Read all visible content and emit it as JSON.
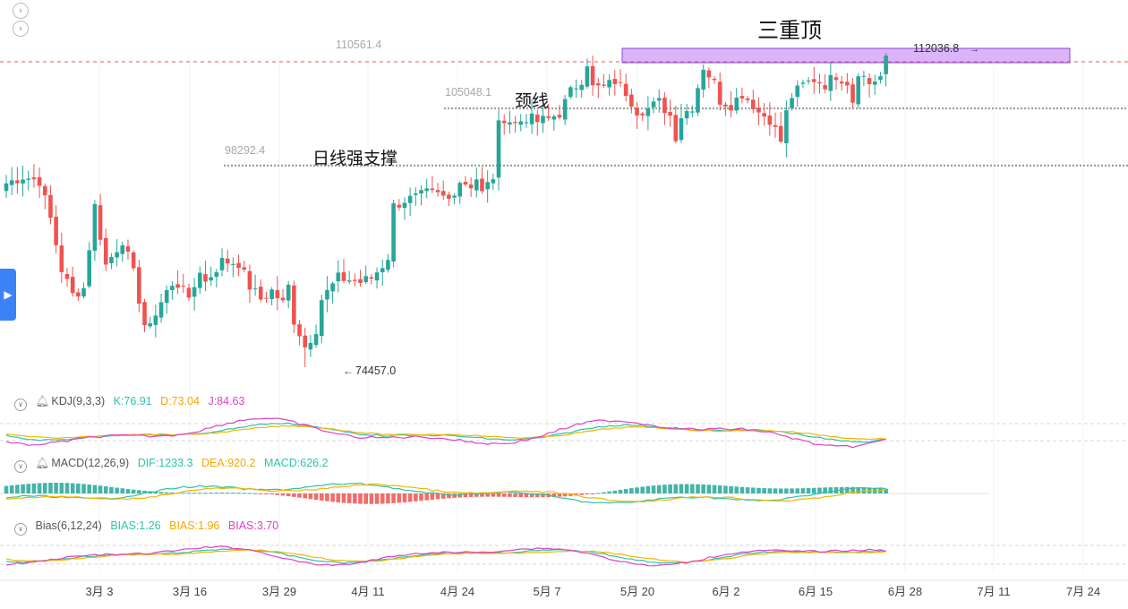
{
  "ui": {
    "top_icons": [
      "chevron-right-icon",
      "chevron-right-icon"
    ],
    "side_tab_icon": "play-right-icon",
    "top_icon_glyph": "›",
    "side_tab_glyph": "▶"
  },
  "annotations": {
    "pattern_title": "三重顶",
    "neckline_label": "颈线",
    "support_label": "日线强支撑",
    "level_high": "110561.4",
    "level_neck": "105048.1",
    "level_support": "98292.4",
    "price_low": "74457.0",
    "price_last": "112036.8"
  },
  "indicators": {
    "kdj": {
      "name": "KDJ(9,3,3)",
      "k": "K:76.91",
      "d": "D:73.04",
      "j": "J:84.63"
    },
    "macd": {
      "name": "MACD(12,26,9)",
      "dif": "DIF:1233.3",
      "dea": "DEA:920.2",
      "macd": "MACD:626.2"
    },
    "bias": {
      "name": "Bias(6,12,24)",
      "b1": "BIAS:1.26",
      "b2": "BIAS:1.96",
      "b3": "BIAS:3.70"
    }
  },
  "colors": {
    "up": "#26a69a",
    "down": "#ef5350",
    "k": "#2bc4a9",
    "d": "#f5b400",
    "j": "#e040c8",
    "zone": "#cf9cf5",
    "zone_border": "#8a44d6"
  },
  "chart_data": {
    "type": "candlestick",
    "x_tick_labels": [
      "3月 3",
      "3月 16",
      "3月 29",
      "4月 11",
      "4月 24",
      "5月 7",
      "5月 20",
      "6月 2",
      "6月 15",
      "6月 28",
      "7月 11",
      "7月 24"
    ],
    "levels": {
      "resistance": 110561.4,
      "neckline": 105048.1,
      "support": 98292.4
    },
    "extremes": {
      "low": 74457.0,
      "last_high": 112036.8
    },
    "closes_control": [
      [
        0,
        96200
      ],
      [
        3,
        97000
      ],
      [
        6,
        96500
      ],
      [
        8,
        92000
      ],
      [
        10,
        86000
      ],
      [
        12,
        83000
      ],
      [
        14,
        83800
      ],
      [
        16,
        93500
      ],
      [
        18,
        86500
      ],
      [
        21,
        89500
      ],
      [
        23,
        85500
      ],
      [
        25,
        79500
      ],
      [
        26,
        79000
      ],
      [
        27,
        81000
      ],
      [
        29,
        83500
      ],
      [
        32,
        84500
      ],
      [
        33,
        82000
      ],
      [
        35,
        86000
      ],
      [
        36,
        84500
      ],
      [
        39,
        87000
      ],
      [
        42,
        86800
      ],
      [
        44,
        84000
      ],
      [
        46,
        82500
      ],
      [
        48,
        83500
      ],
      [
        50,
        82000
      ],
      [
        51,
        84000
      ],
      [
        52,
        80000
      ],
      [
        53,
        78500
      ],
      [
        54,
        76800
      ],
      [
        56,
        79000
      ],
      [
        57,
        82500
      ],
      [
        60,
        85000
      ],
      [
        62,
        84800
      ],
      [
        64,
        84500
      ],
      [
        66,
        85000
      ],
      [
        68,
        86500
      ],
      [
        69,
        87500
      ],
      [
        70,
        93500
      ],
      [
        72,
        94200
      ],
      [
        74,
        94500
      ],
      [
        76,
        95000
      ],
      [
        78,
        94800
      ],
      [
        80,
        94300
      ],
      [
        82,
        96500
      ],
      [
        84,
        96000
      ],
      [
        85,
        96800
      ],
      [
        86,
        95000
      ],
      [
        88,
        97000
      ],
      [
        89,
        103000
      ],
      [
        90,
        104000
      ],
      [
        92,
        103200
      ],
      [
        94,
        104000
      ],
      [
        96,
        103500
      ],
      [
        98,
        103800
      ],
      [
        100,
        104500
      ],
      [
        102,
        107000
      ],
      [
        104,
        108500
      ],
      [
        105,
        110500
      ],
      [
        106,
        107500
      ],
      [
        108,
        107500
      ],
      [
        110,
        108300
      ],
      [
        112,
        107000
      ],
      [
        114,
        104800
      ],
      [
        116,
        105000
      ],
      [
        118,
        105800
      ],
      [
        120,
        104200
      ],
      [
        121,
        101800
      ],
      [
        122,
        104200
      ],
      [
        124,
        105300
      ],
      [
        126,
        110000
      ],
      [
        128,
        108000
      ],
      [
        129,
        106000
      ],
      [
        131,
        105500
      ],
      [
        133,
        106800
      ],
      [
        135,
        105500
      ],
      [
        136,
        104600
      ],
      [
        138,
        103800
      ],
      [
        140,
        101200
      ],
      [
        141,
        104500
      ],
      [
        142,
        106500
      ],
      [
        144,
        107800
      ],
      [
        146,
        108500
      ],
      [
        148,
        107900
      ],
      [
        150,
        109000
      ],
      [
        152,
        108200
      ],
      [
        153,
        106000
      ],
      [
        154,
        109500
      ],
      [
        156,
        108000
      ],
      [
        158,
        108800
      ],
      [
        159,
        111300
      ]
    ]
  }
}
